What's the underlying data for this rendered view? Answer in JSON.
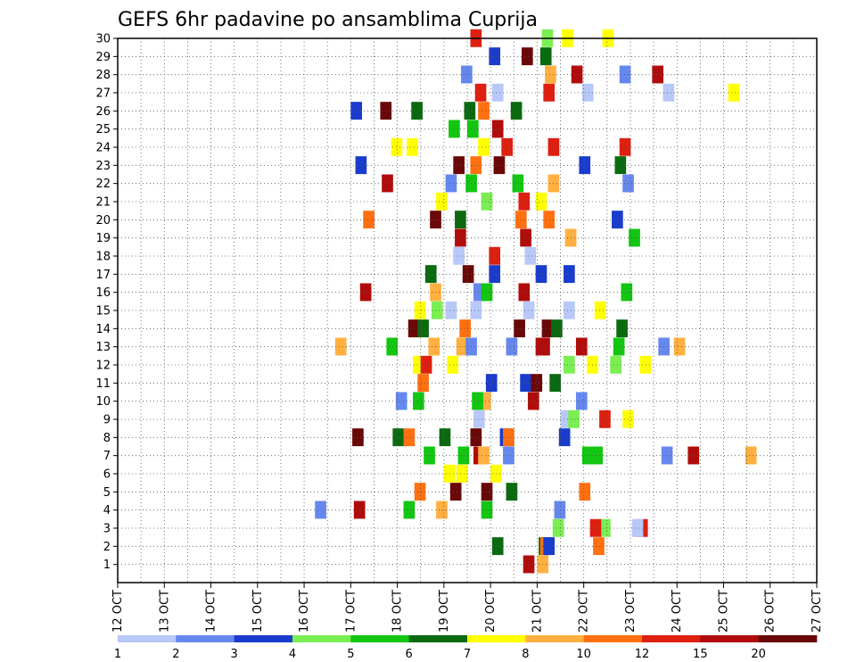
{
  "chart_data": {
    "type": "heatmap",
    "title": "GEFS 6hr padavine po ansamblima Cuprija",
    "xlabel": "",
    "ylabel": "",
    "x_labels": [
      "12 OCT",
      "13 OCT",
      "14 OCT",
      "15 OCT",
      "16 OCT",
      "17 OCT",
      "18 OCT",
      "19 OCT",
      "20 OCT",
      "21 OCT",
      "22 OCT",
      "23 OCT",
      "24 OCT",
      "25 OCT",
      "26 OCT",
      "27 OCT"
    ],
    "y_labels": [
      "1",
      "2",
      "3",
      "4",
      "5",
      "6",
      "7",
      "8",
      "9",
      "10",
      "11",
      "12",
      "13",
      "14",
      "15",
      "16",
      "17",
      "18",
      "19",
      "20",
      "21",
      "22",
      "23",
      "24",
      "25",
      "26",
      "27",
      "28",
      "29",
      "30"
    ],
    "xlim_days": [
      0,
      15
    ],
    "ylim": [
      0,
      30
    ],
    "grid": true,
    "colorbar": {
      "position": "bottom",
      "labels": [
        "1",
        "2",
        "3",
        "4",
        "5",
        "6",
        "7",
        "8",
        "10",
        "12",
        "15",
        "20"
      ],
      "colors": [
        "#b8c8f8",
        "#6688ee",
        "#1a3ccc",
        "#7aee52",
        "#12c612",
        "#0a6a10",
        "#ffff00",
        "#ffb040",
        "#ff7010",
        "#dd2010",
        "#b00c0c",
        "#6a0808"
      ]
    },
    "cells": {
      "1": [
        [
          "20 OCT",
          21
        ],
        [
          "21 OCT",
          0
        ]
      ],
      "2": [
        [
          "20 OCT",
          1
        ],
        [
          "21 OCT",
          1
        ],
        [
          "21 OCT",
          2
        ],
        [
          "21 OCT",
          4
        ],
        [
          "22 OCT",
          6
        ]
      ],
      "3": [
        [
          "21 OCT",
          10
        ],
        [
          "22 OCT",
          10
        ],
        [
          "22 OCT",
          4
        ],
        [
          "23 OCT",
          4
        ],
        [
          "23 OCT",
          1
        ]
      ],
      "4": [
        [
          "16 OCT",
          7
        ],
        [
          "17 OCT",
          2
        ],
        [
          "18 OCT",
          4
        ],
        [
          "18 OCT",
          25
        ],
        [
          "19 OCT",
          24
        ],
        [
          "21 OCT",
          11
        ]
      ],
      "5": [
        [
          "18 OCT",
          11
        ],
        [
          "19 OCT",
          4
        ],
        [
          "19 OCT",
          24
        ],
        [
          "20 OCT",
          10
        ],
        [
          "21 OCT",
          27
        ]
      ],
      "6": [
        [
          "19 OCT",
          0
        ],
        [
          "19 OCT",
          8
        ],
        [
          "20 OCT",
          0
        ]
      ],
      "7": [
        [
          "18 OCT",
          17
        ],
        [
          "19 OCT",
          9
        ],
        [
          "19 OCT",
          19
        ],
        [
          "19 OCT",
          22
        ],
        [
          "20 OCT",
          8
        ],
        [
          "21 OCT",
          29
        ],
        [
          "22 OCT",
          5
        ],
        [
          "23 OCT",
          20
        ],
        [
          "24 OCT",
          7
        ],
        [
          "25 OCT",
          14
        ]
      ],
      "8": [
        [
          "17 OCT",
          1
        ],
        [
          "17 OCT",
          27
        ],
        [
          "18 OCT",
          27
        ],
        [
          "18 OCT",
          4
        ],
        [
          "19 OCT",
          17
        ],
        [
          "20 OCT",
          6
        ],
        [
          "20 OCT",
          8
        ],
        [
          "21 OCT",
          14
        ]
      ],
      "9": [
        [
          "19 OCT",
          19
        ],
        [
          "21 OCT",
          15
        ],
        [
          "21 OCT",
          20
        ],
        [
          "22 OCT",
          10
        ],
        [
          "22 OCT",
          25
        ]
      ],
      "10": [
        [
          "17 OCT",
          29
        ],
        [
          "18 OCT",
          10
        ],
        [
          "19 OCT",
          20
        ],
        [
          "19 OCT",
          23
        ],
        [
          "19 OCT",
          18
        ],
        [
          "20 OCT",
          24
        ],
        [
          "21 OCT",
          25
        ]
      ],
      "11": [
        [
          "18 OCT",
          13
        ],
        [
          "19 OCT",
          27
        ],
        [
          "20 OCT",
          19
        ],
        [
          "20 OCT",
          26
        ],
        [
          "21 OCT",
          8
        ]
      ],
      "12": [
        [
          "18 OCT",
          10
        ],
        [
          "18 OCT",
          15
        ],
        [
          "19 OCT",
          2
        ],
        [
          "21 OCT",
          17
        ],
        [
          "22 OCT",
          2
        ],
        [
          "22 OCT",
          17
        ],
        [
          "23 OCT",
          6
        ]
      ],
      "13": [
        [
          "16 OCT",
          20
        ],
        [
          "17 OCT",
          23
        ],
        [
          "18 OCT",
          20
        ],
        [
          "19 OCT",
          8
        ],
        [
          "19 OCT",
          14
        ],
        [
          "20 OCT",
          10
        ],
        [
          "20 OCT",
          29
        ],
        [
          "21 OCT",
          1
        ],
        [
          "21 OCT",
          25
        ],
        [
          "22 OCT",
          19
        ],
        [
          "23 OCT",
          18
        ],
        [
          "23 OCT",
          28
        ]
      ],
      "14": [
        [
          "18 OCT",
          7
        ],
        [
          "18 OCT",
          13
        ],
        [
          "19 OCT",
          10
        ],
        [
          "20 OCT",
          15
        ],
        [
          "21 OCT",
          3
        ],
        [
          "21 OCT",
          9
        ],
        [
          "22 OCT",
          21
        ]
      ],
      "15": [
        [
          "18 OCT",
          11
        ],
        [
          "18 OCT",
          22
        ],
        [
          "19 OCT",
          1
        ],
        [
          "19 OCT",
          17
        ],
        [
          "20 OCT",
          21
        ],
        [
          "21 OCT",
          17
        ],
        [
          "22 OCT",
          7
        ]
      ],
      "16": [
        [
          "17 OCT",
          6
        ],
        [
          "18 OCT",
          21
        ],
        [
          "19 OCT",
          19
        ],
        [
          "19 OCT",
          24
        ],
        [
          "20 OCT",
          18
        ],
        [
          "22 OCT",
          24
        ]
      ],
      "17": [
        [
          "18 OCT",
          18
        ],
        [
          "19 OCT",
          12
        ],
        [
          "19 OCT",
          29
        ],
        [
          "20 OCT",
          29
        ],
        [
          "21 OCT",
          17
        ]
      ],
      "18": [
        [
          "19 OCT",
          6
        ],
        [
          "19 OCT",
          29
        ],
        [
          "20 OCT",
          22
        ]
      ],
      "19": [
        [
          "19 OCT",
          7
        ],
        [
          "20 OCT",
          19
        ],
        [
          "21 OCT",
          18
        ],
        [
          "22 OCT",
          29
        ]
      ],
      "20": [
        [
          "17 OCT",
          8
        ],
        [
          "18 OCT",
          21
        ],
        [
          "19 OCT",
          7
        ],
        [
          "20 OCT",
          16
        ],
        [
          "21 OCT",
          4
        ],
        [
          "22 OCT",
          18
        ]
      ],
      "21": [
        [
          "18 OCT",
          25
        ],
        [
          "19 OCT",
          24
        ],
        [
          "20 OCT",
          18
        ],
        [
          "20 OCT",
          29
        ]
      ],
      "22": [
        [
          "17 OCT",
          20
        ],
        [
          "19 OCT",
          1
        ],
        [
          "19 OCT",
          14
        ],
        [
          "20 OCT",
          14
        ],
        [
          "21 OCT",
          7
        ],
        [
          "22 OCT",
          25
        ]
      ],
      "23": [
        [
          "17 OCT",
          3
        ],
        [
          "19 OCT",
          6
        ],
        [
          "19 OCT",
          17
        ],
        [
          "20 OCT",
          2
        ],
        [
          "21 OCT",
          27
        ],
        [
          "22 OCT",
          20
        ]
      ],
      "24": [
        [
          "17 OCT",
          26
        ],
        [
          "18 OCT",
          6
        ],
        [
          "19 OCT",
          22
        ],
        [
          "20 OCT",
          7
        ],
        [
          "21 OCT",
          7
        ],
        [
          "22 OCT",
          23
        ]
      ],
      "25": [
        [
          "19 OCT",
          3
        ],
        [
          "19 OCT",
          15
        ],
        [
          "20 OCT",
          1
        ]
      ],
      "26": [
        [
          "17 OCT",
          0
        ],
        [
          "17 OCT",
          19
        ],
        [
          "18 OCT",
          9
        ],
        [
          "19 OCT",
          13
        ],
        [
          "19 OCT",
          22
        ],
        [
          "20 OCT",
          13
        ]
      ],
      "27": [
        [
          "19 OCT",
          20
        ],
        [
          "20 OCT",
          1
        ],
        [
          "21 OCT",
          4
        ],
        [
          "21 OCT",
          29
        ],
        [
          "23 OCT",
          21
        ],
        [
          "25 OCT",
          3
        ]
      ],
      "28": [
        [
          "19 OCT",
          11
        ],
        [
          "21 OCT",
          5
        ],
        [
          "21 OCT",
          22
        ],
        [
          "22 OCT",
          23
        ],
        [
          "23 OCT",
          14
        ]
      ],
      "29": [
        [
          "19 OCT",
          29
        ],
        [
          "20 OCT",
          20
        ],
        [
          "21 OCT",
          2
        ]
      ],
      "30": [
        [
          "19 OCT",
          17
        ],
        [
          "21 OCT",
          3
        ],
        [
          "21 OCT",
          16
        ],
        [
          "22 OCT",
          12
        ]
      ]
    }
  }
}
